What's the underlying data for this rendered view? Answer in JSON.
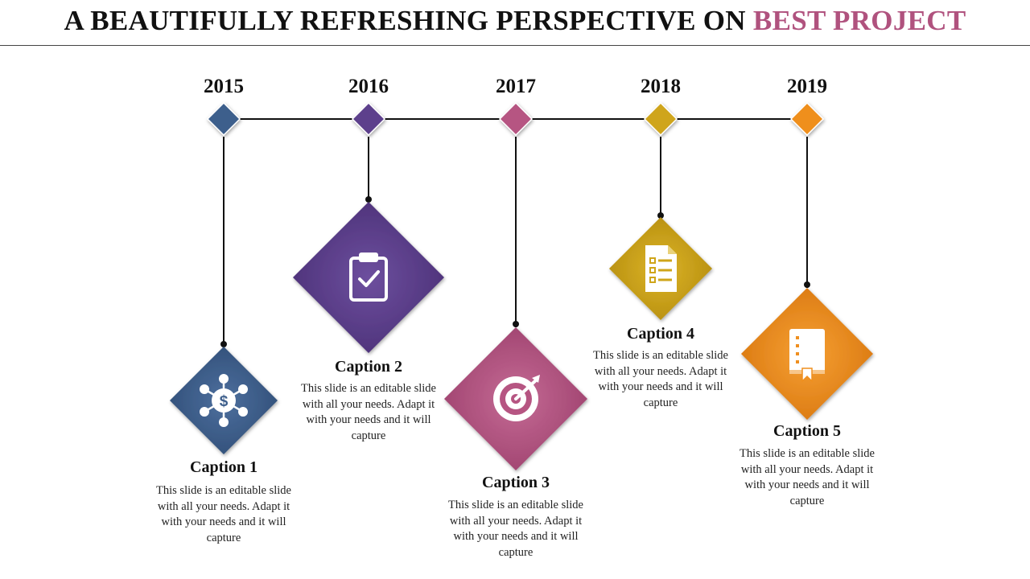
{
  "title": {
    "main": "A BEAUTIFULLY REFRESHING PERSPECTIVE ON",
    "accent": "BEST PROJECT"
  },
  "colors": {
    "accent": "#b0527e",
    "blue": "#3e5f8c",
    "purple": "#5d3f8c",
    "pink": "#b65582",
    "gold": "#cfa51a",
    "orange": "#ef8f1f"
  },
  "milestones": [
    {
      "year": "2015",
      "caption": "Caption 1",
      "text": "This slide is an editable slide with all your needs. Adapt it with your needs and it will capture",
      "icon": "money-network-icon",
      "color": "#3e5f8c"
    },
    {
      "year": "2016",
      "caption": "Caption 2",
      "text": "This slide is an editable slide with all your needs. Adapt it with your needs and it will capture",
      "icon": "clipboard-check-icon",
      "color": "#5d3f8c"
    },
    {
      "year": "2017",
      "caption": "Caption 3",
      "text": "This slide is an editable slide with all your needs. Adapt it with your needs and it will capture",
      "icon": "target-icon",
      "color": "#b65582"
    },
    {
      "year": "2018",
      "caption": "Caption 4",
      "text": "This slide is an editable slide with all your needs. Adapt it with your needs and it will capture",
      "icon": "document-list-icon",
      "color": "#cfa51a"
    },
    {
      "year": "2019",
      "caption": "Caption 5",
      "text": "This slide is an editable slide with all your needs. Adapt it with your needs and it will capture",
      "icon": "book-icon",
      "color": "#ef8f1f"
    }
  ]
}
